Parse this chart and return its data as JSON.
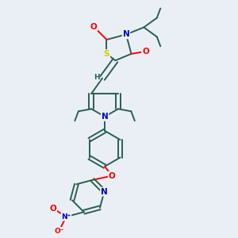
{
  "background_color": "#eaeff5",
  "bond_color": "#2a6050",
  "atom_colors": {
    "O": "#ff0000",
    "N": "#0000cc",
    "S": "#cccc00",
    "C": "#2a6050",
    "H": "#2a6050"
  },
  "figsize": [
    3.0,
    3.0
  ],
  "dpi": 100
}
